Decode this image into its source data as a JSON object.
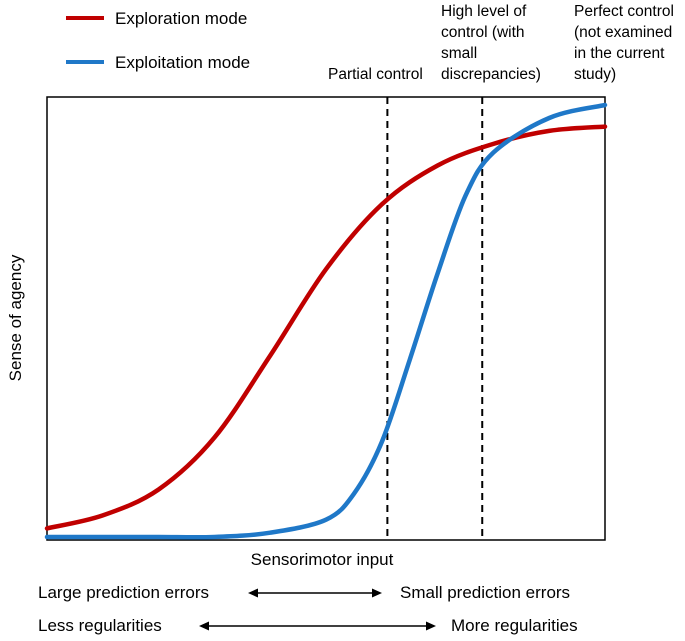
{
  "chart_data": {
    "type": "line",
    "title": "",
    "xlabel": "Sensorimotor input",
    "ylabel": "Sense of agency",
    "xlim": [
      0,
      1
    ],
    "ylim": [
      0,
      1
    ],
    "grid": false,
    "legend_placement": "top-left",
    "series": [
      {
        "name": "Exploration mode",
        "color": "#c00000",
        "x": [
          0,
          0.1,
          0.2,
          0.3,
          0.4,
          0.5,
          0.6,
          0.7,
          0.8,
          0.9,
          1.0
        ],
        "y": [
          0.02,
          0.05,
          0.11,
          0.23,
          0.42,
          0.62,
          0.77,
          0.86,
          0.91,
          0.94,
          0.95
        ]
      },
      {
        "name": "Exploitation mode",
        "color": "#1f78c8",
        "x": [
          0,
          0.1,
          0.2,
          0.3,
          0.4,
          0.5,
          0.55,
          0.6,
          0.65,
          0.7,
          0.75,
          0.8,
          0.9,
          1.0
        ],
        "y": [
          0,
          0,
          0,
          0,
          0.01,
          0.04,
          0.1,
          0.22,
          0.41,
          0.61,
          0.79,
          0.89,
          0.97,
          1.0
        ]
      }
    ],
    "markers": [
      {
        "x": 0.61,
        "label_lines": [
          "Partial control"
        ]
      },
      {
        "x": 0.78,
        "label_lines": [
          "High level of",
          "control (with",
          "small",
          "discrepancies)"
        ]
      }
    ],
    "corner_note_lines": [
      "Perfect control",
      "(not examined",
      "in the current",
      "study)"
    ],
    "bottom_annotations": [
      {
        "left": "Large prediction errors",
        "right": "Small prediction errors"
      },
      {
        "left": "Less regularities",
        "right": "More regularities"
      }
    ]
  }
}
